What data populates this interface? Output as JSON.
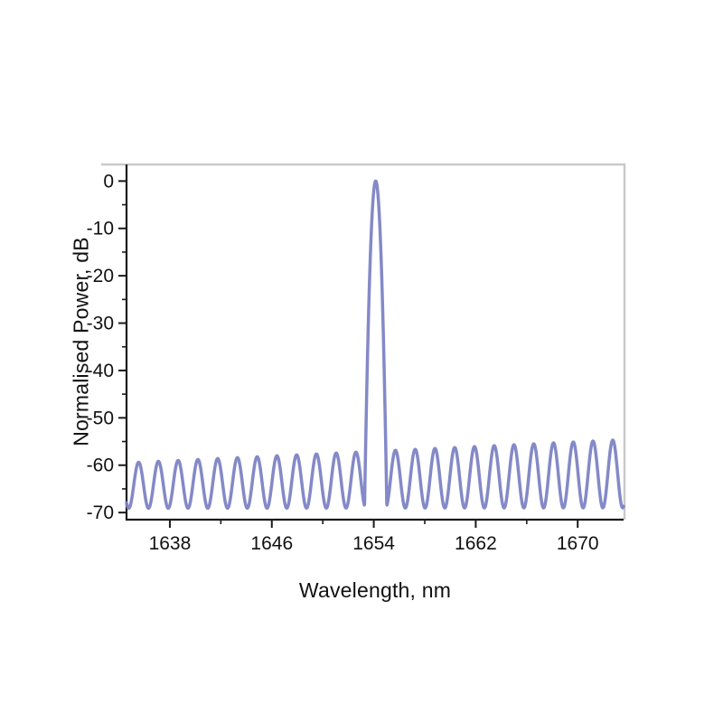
{
  "page": {
    "background": "#ffffff"
  },
  "chart_data": {
    "type": "line",
    "title": "",
    "xlabel": "Wavelength, nm",
    "ylabel": "Normalised Power, dB",
    "x_ticks": [
      1638,
      1646,
      1654,
      1662,
      1670
    ],
    "y_ticks": [
      0,
      -10,
      -20,
      -30,
      -40,
      -50,
      -60,
      -70
    ],
    "xlim": [
      1634.6,
      1673.6
    ],
    "ylim_display": [
      -71.5,
      3.5
    ],
    "x_minor_ticks": [
      1642,
      1650,
      1658,
      1666
    ],
    "y_minor_ticks": [
      -5,
      -15,
      -25,
      -35,
      -45,
      -55,
      -65
    ],
    "grid": false,
    "legend": "none",
    "frame": {
      "axis_color": "#1a1a1a",
      "frame_color": "#c9c9c9",
      "tick_label_color": "#111111"
    },
    "series": [
      {
        "name": "normalised-power-spectrum",
        "color": "#7d83c4",
        "stroke_width": 3.5,
        "model": {
          "kind": "fringe_comb_with_peak",
          "fringe_period_nm": 1.55,
          "fringe_mid_dB_start": -64.3,
          "fringe_mid_dB_end": -61.8,
          "fringe_amp_dB_start": 4.8,
          "fringe_amp_dB_end": 7.2,
          "floor_dB": -69.2,
          "peak_center_nm": 1654.15,
          "peak_top_dB": 0,
          "peak_curvature_dB_per_nm2": 90,
          "sample_step_nm": 0.02
        },
        "key_points": {
          "main_peak": {
            "x_nm": 1654.15,
            "y_dB": 0
          },
          "fringe_max_dB_left_edge": -59.5,
          "fringe_max_dB_right_edge": -54.5,
          "fringe_min_dB": -69,
          "approx_fringe_period_nm": 1.55
        }
      }
    ]
  }
}
